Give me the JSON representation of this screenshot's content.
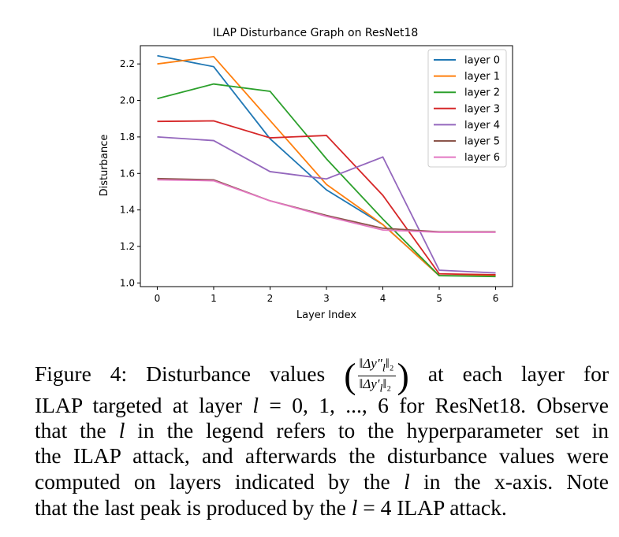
{
  "chart_data": {
    "type": "line",
    "title": "ILAP Disturbance Graph on ResNet18",
    "xlabel": "Layer Index",
    "ylabel": "Disturbance",
    "x": [
      0,
      1,
      2,
      3,
      4,
      5,
      6
    ],
    "xticks": [
      "0",
      "1",
      "2",
      "3",
      "4",
      "5",
      "6"
    ],
    "yticks": [
      "1.0",
      "1.2",
      "1.4",
      "1.6",
      "1.8",
      "2.0",
      "2.2"
    ],
    "xlim": [
      -0.3,
      6.3
    ],
    "ylim": [
      0.98,
      2.3
    ],
    "grid": false,
    "legend_position": "top-right",
    "series": [
      {
        "name": "layer 0",
        "color": "#1f77b4",
        "values": [
          2.245,
          2.185,
          1.79,
          1.51,
          1.32,
          1.04,
          1.04
        ]
      },
      {
        "name": "layer 1",
        "color": "#ff7f0e",
        "values": [
          2.2,
          2.24,
          1.89,
          1.54,
          1.32,
          1.04,
          1.04
        ]
      },
      {
        "name": "layer 2",
        "color": "#2ca02c",
        "values": [
          2.01,
          2.09,
          2.05,
          1.68,
          1.35,
          1.04,
          1.035
        ]
      },
      {
        "name": "layer 3",
        "color": "#d62728",
        "values": [
          1.885,
          1.888,
          1.795,
          1.808,
          1.48,
          1.05,
          1.045
        ]
      },
      {
        "name": "layer 4",
        "color": "#9467bd",
        "values": [
          1.8,
          1.78,
          1.61,
          1.57,
          1.69,
          1.07,
          1.055
        ]
      },
      {
        "name": "layer 5",
        "color": "#8c564b",
        "values": [
          1.572,
          1.565,
          1.45,
          1.37,
          1.3,
          1.28,
          1.28
        ]
      },
      {
        "name": "layer 6",
        "color": "#e377c2",
        "values": [
          1.565,
          1.56,
          1.45,
          1.365,
          1.29,
          1.278,
          1.278
        ]
      }
    ]
  },
  "caption": {
    "lines": [
      [
        "Figure 4:  Disturbance values",
        "‖Δy″",
        "l",
        "‖₂",
        "‖Δy′",
        "l",
        "‖₂",
        "at each layer for"
      ],
      [
        "ILAP targeted at layer ",
        "l",
        " = 0, 1, ..., 6 for ResNet18. Observe"
      ],
      [
        "that the ",
        "l",
        " in the legend refers to the hyperparameter set in"
      ],
      [
        "the ILAP attack, and afterwards the disturbance values were"
      ],
      [
        "computed on layers indicated by the ",
        "l",
        " in the x-axis. Note"
      ],
      [
        "that the last peak is produced by the ",
        "l",
        " = 4 ILAP attack."
      ]
    ]
  }
}
